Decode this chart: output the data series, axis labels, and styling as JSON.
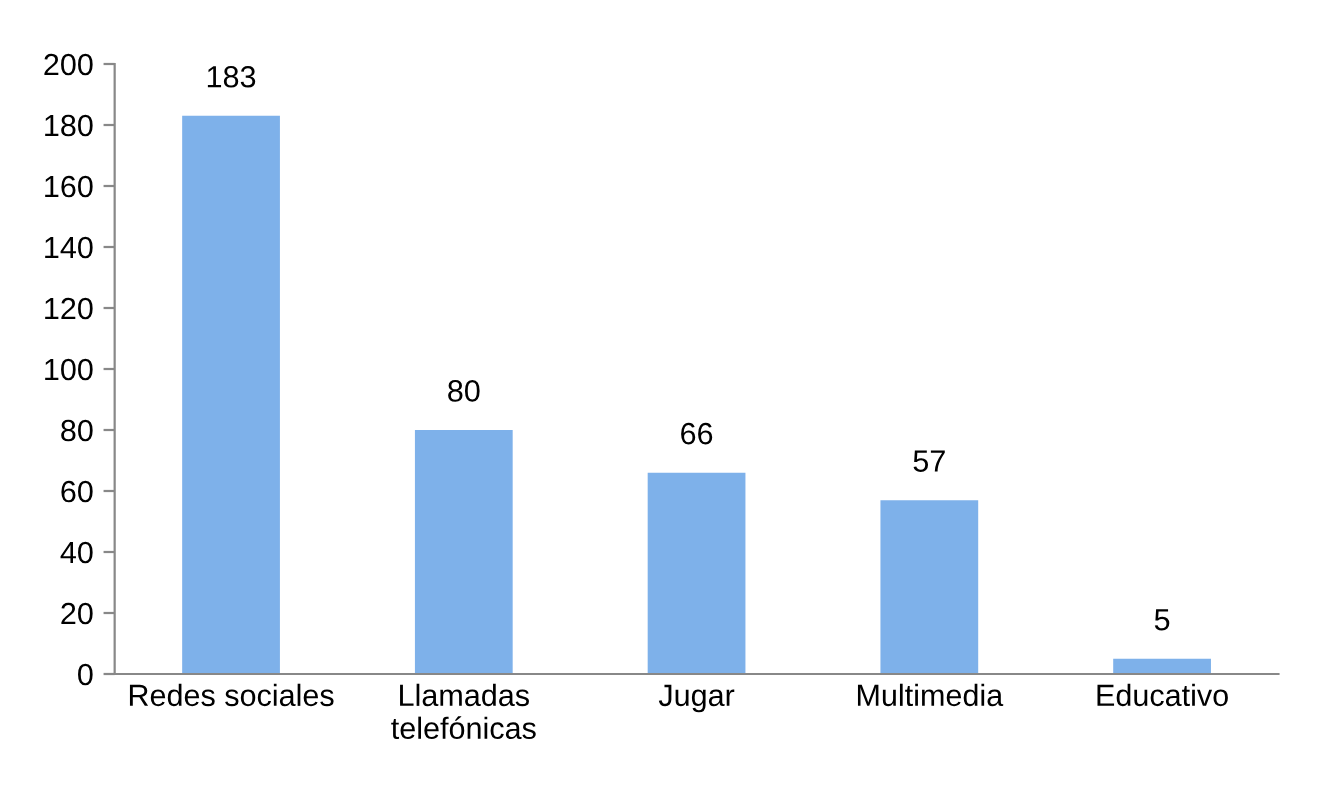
{
  "chart_data": {
    "type": "bar",
    "categories": [
      "Redes sociales",
      "Llamadas\ntelefónicas",
      "Jugar",
      "Multimedia",
      "Educativo"
    ],
    "values": [
      183,
      80,
      66,
      57,
      5
    ],
    "color": "#7eb1ea",
    "ylim": [
      0,
      200
    ],
    "yticks": [
      0,
      20,
      40,
      60,
      80,
      100,
      120,
      140,
      160,
      180,
      200
    ],
    "grid": false,
    "data_labels": true,
    "legend": false
  }
}
